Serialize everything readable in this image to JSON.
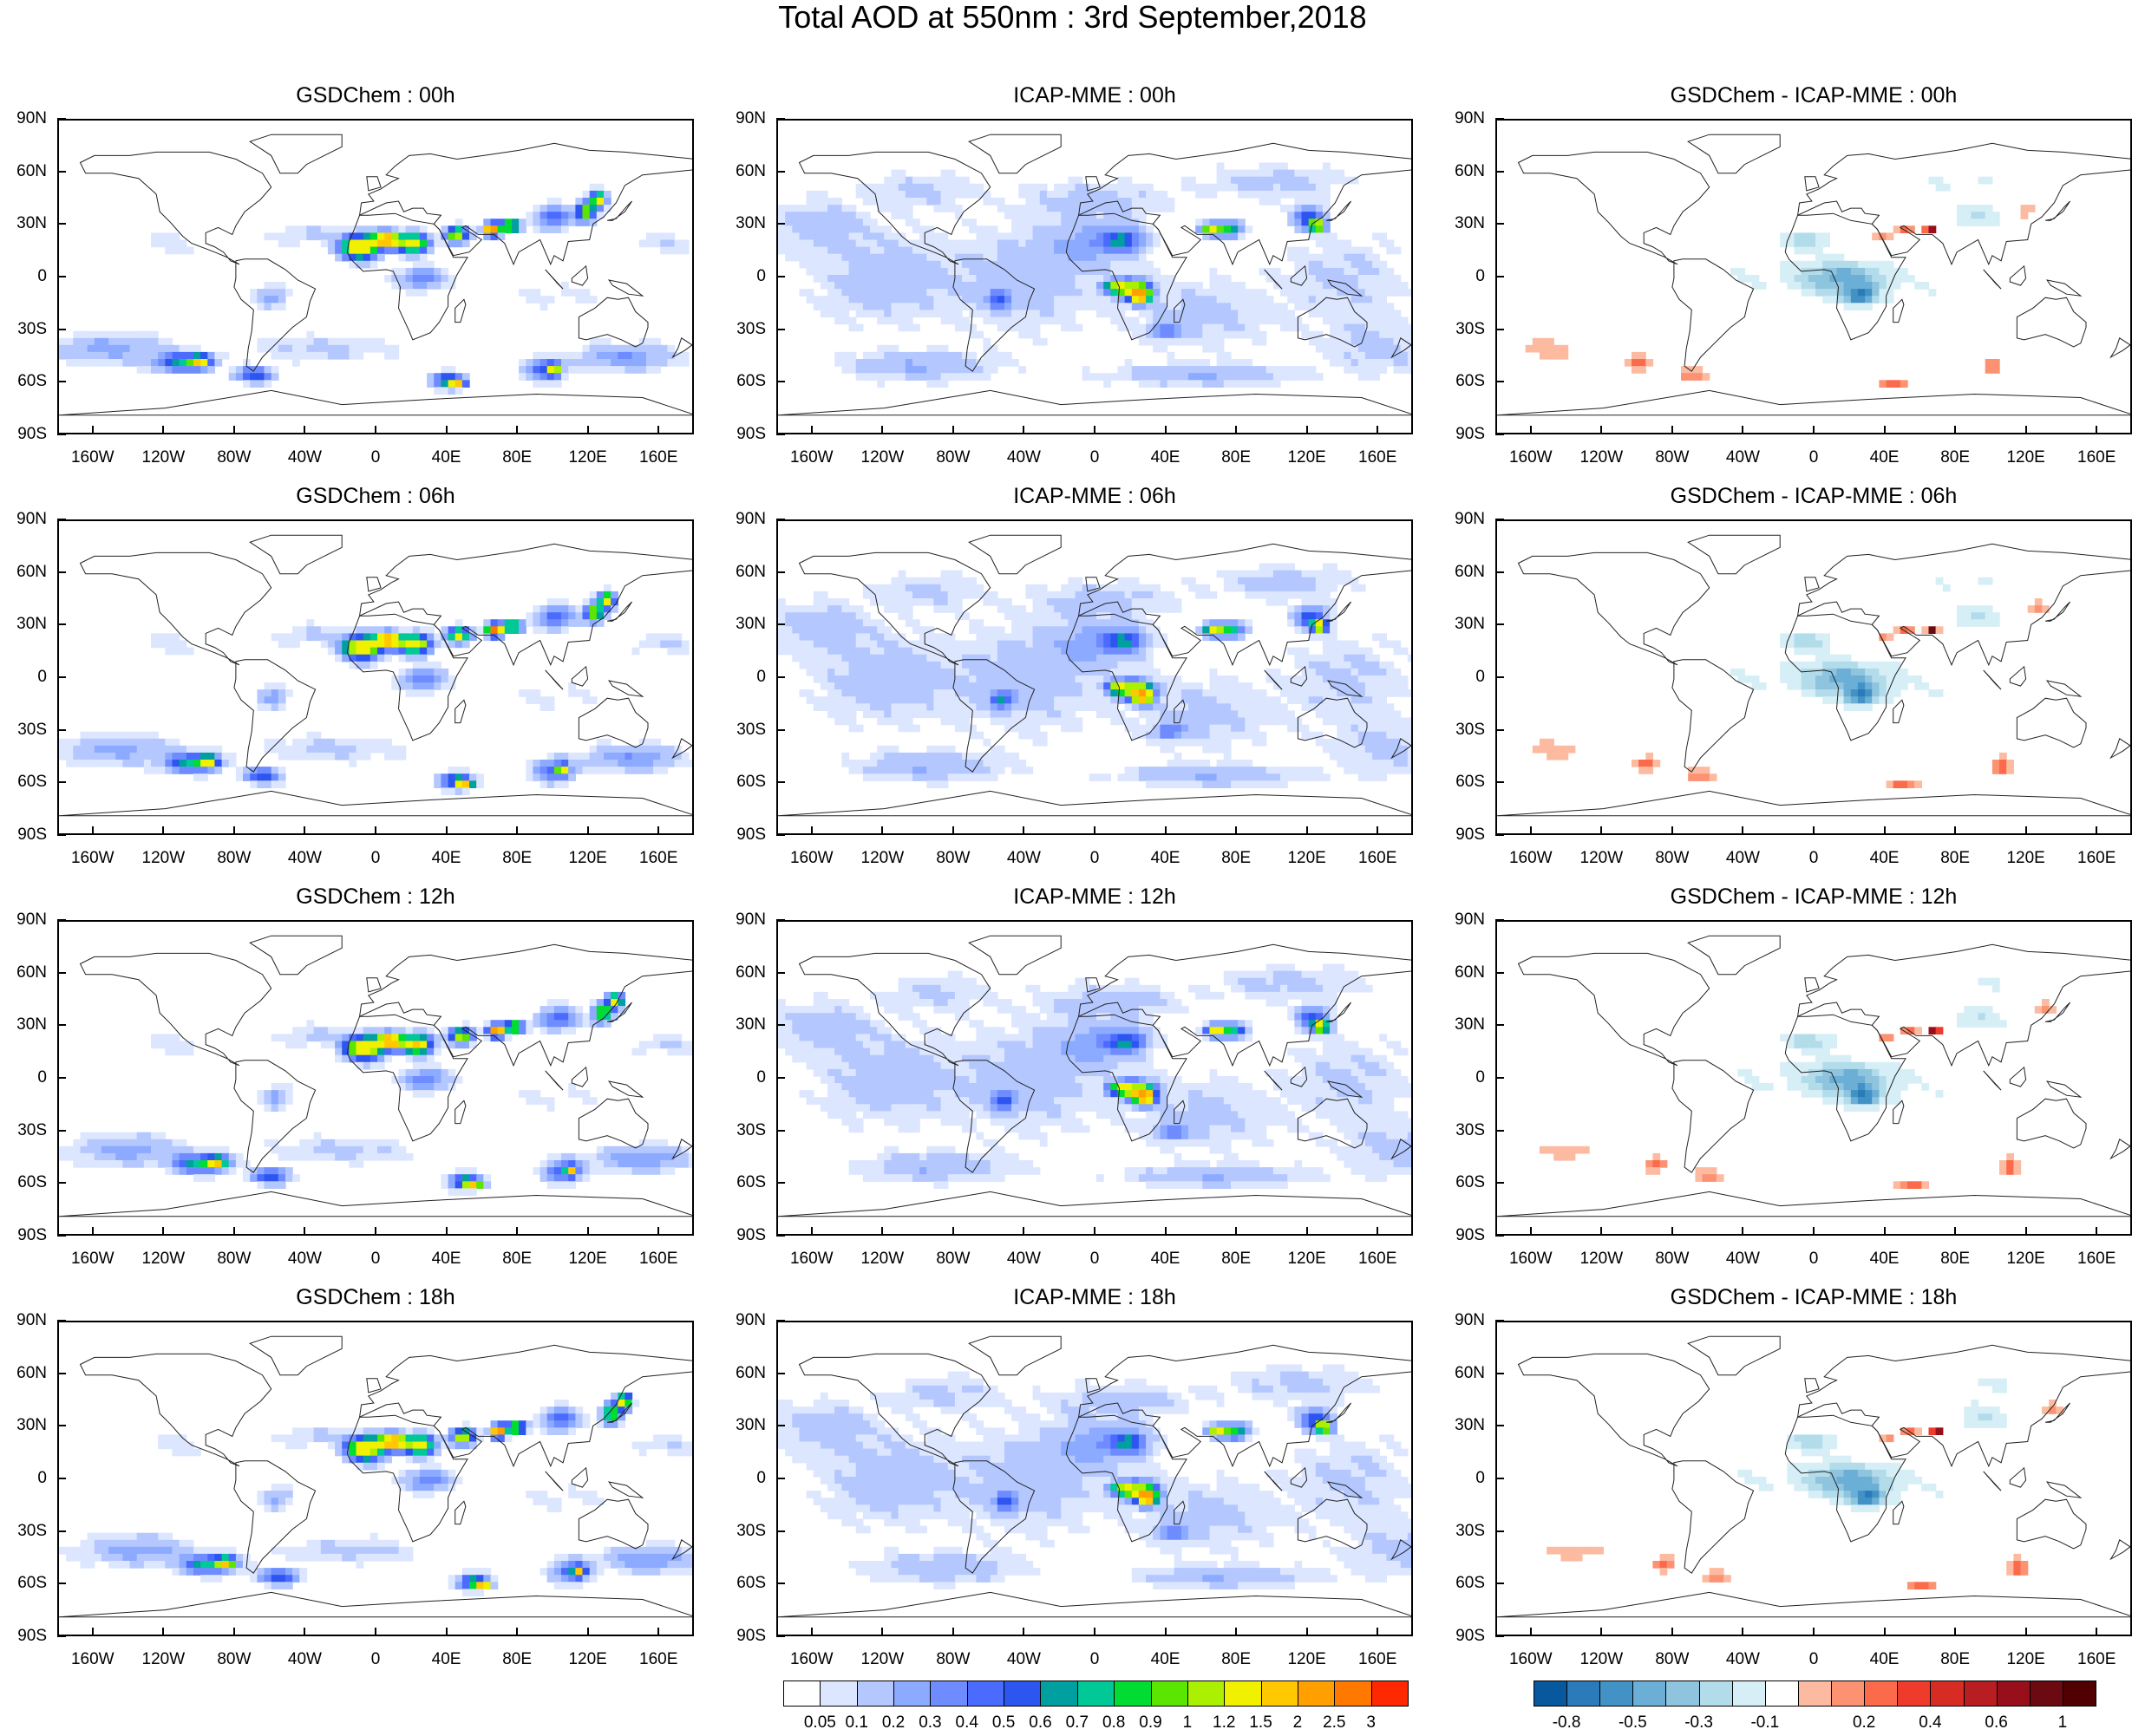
{
  "title": "Total AOD at 550nm : 3rd September,2018",
  "lat_labels": [
    "90N",
    "60N",
    "30N",
    "0",
    "30S",
    "60S",
    "90S"
  ],
  "lon_labels": [
    "160W",
    "120W",
    "80W",
    "40W",
    "0",
    "40E",
    "80E",
    "120E",
    "160E"
  ],
  "columns": [
    {
      "key": "gsd",
      "colormap": "aod"
    },
    {
      "key": "icap",
      "colormap": "aod"
    },
    {
      "key": "diff",
      "colormap": "diff"
    }
  ],
  "panels": [
    {
      "title": "GSDChem : 00h",
      "model": "gsd",
      "hour": "00h"
    },
    {
      "title": "ICAP-MME : 00h",
      "model": "icap",
      "hour": "00h"
    },
    {
      "title": "GSDChem - ICAP-MME : 00h",
      "model": "diff",
      "hour": "00h"
    },
    {
      "title": "GSDChem : 06h",
      "model": "gsd",
      "hour": "06h"
    },
    {
      "title": "ICAP-MME : 06h",
      "model": "icap",
      "hour": "06h"
    },
    {
      "title": "GSDChem - ICAP-MME : 06h",
      "model": "diff",
      "hour": "06h"
    },
    {
      "title": "GSDChem : 12h",
      "model": "gsd",
      "hour": "12h"
    },
    {
      "title": "ICAP-MME : 12h",
      "model": "icap",
      "hour": "12h"
    },
    {
      "title": "GSDChem - ICAP-MME : 12h",
      "model": "diff",
      "hour": "12h"
    },
    {
      "title": "GSDChem : 18h",
      "model": "gsd",
      "hour": "18h"
    },
    {
      "title": "ICAP-MME : 18h",
      "model": "icap",
      "hour": "18h"
    },
    {
      "title": "GSDChem - ICAP-MME : 18h",
      "model": "diff",
      "hour": "18h"
    }
  ],
  "aod_colorbar": {
    "labels": [
      "0.05",
      "0.1",
      "0.2",
      "0.3",
      "0.4",
      "0.5",
      "0.6",
      "0.7",
      "0.8",
      "0.9",
      "1",
      "1.2",
      "1.5",
      "2",
      "2.5",
      "3"
    ],
    "colors": [
      "#ffffff",
      "#dce6ff",
      "#b4c8ff",
      "#8caaff",
      "#6e8cff",
      "#4b6bff",
      "#2d55f0",
      "#00a0a0",
      "#00c896",
      "#00dc32",
      "#5ae600",
      "#aaf000",
      "#f0f000",
      "#ffc800",
      "#ffa000",
      "#ff7800",
      "#ff2800"
    ]
  },
  "diff_colorbar": {
    "labels": [
      "-0.8",
      "-0.5",
      "-0.3",
      "-0.1",
      "0.2",
      "0.4",
      "0.6",
      "1"
    ],
    "label_positions": [
      1,
      3,
      5,
      7,
      10,
      12,
      14,
      16
    ],
    "colors": [
      "#08589e",
      "#2b7bba",
      "#4292c6",
      "#6baed6",
      "#8ec4de",
      "#b3dceb",
      "#d6eef6",
      "#ffffff",
      "#fcbba1",
      "#fc9272",
      "#fb6a4a",
      "#ef3b2c",
      "#d72c24",
      "#b81d22",
      "#970f1a",
      "#6b0a10",
      "#500000"
    ]
  }
}
